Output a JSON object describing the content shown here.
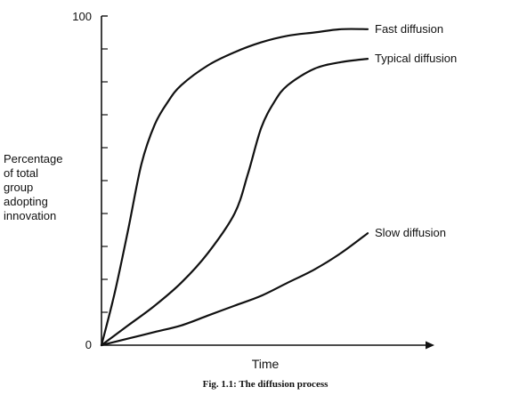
{
  "chart_data": {
    "type": "line",
    "caption": "Fig. 1.1: The diffusion process",
    "xlabel": "Time",
    "ylabel_lines": [
      "Percentage",
      "of total",
      "group",
      "adopting",
      "innovation"
    ],
    "y_tick_labels": [
      "0",
      "100"
    ],
    "ylim": [
      0,
      100
    ],
    "xlim": [
      0,
      100
    ],
    "y_minor_ticks": [
      10,
      20,
      30,
      40,
      50,
      60,
      70,
      80,
      90
    ],
    "grid": false,
    "legend": "none (series labelled at line ends)",
    "series": [
      {
        "name": "Fast diffusion",
        "x": [
          0,
          5,
          10,
          15,
          20,
          25,
          30,
          40,
          50,
          60,
          70,
          80,
          90,
          100
        ],
        "y": [
          0,
          16,
          35,
          55,
          67,
          74,
          79,
          85,
          89,
          92,
          94,
          95,
          96,
          96
        ]
      },
      {
        "name": "Typical diffusion",
        "x": [
          0,
          10,
          20,
          30,
          40,
          50,
          55,
          60,
          65,
          70,
          80,
          90,
          100
        ],
        "y": [
          0,
          6,
          12,
          19,
          28,
          40,
          52,
          66,
          74,
          79,
          84,
          86,
          87
        ]
      },
      {
        "name": "Slow diffusion",
        "x": [
          0,
          10,
          20,
          30,
          40,
          50,
          60,
          70,
          80,
          90,
          100
        ],
        "y": [
          0,
          2,
          4,
          6,
          9,
          12,
          15,
          19,
          23,
          28,
          34
        ]
      }
    ]
  }
}
